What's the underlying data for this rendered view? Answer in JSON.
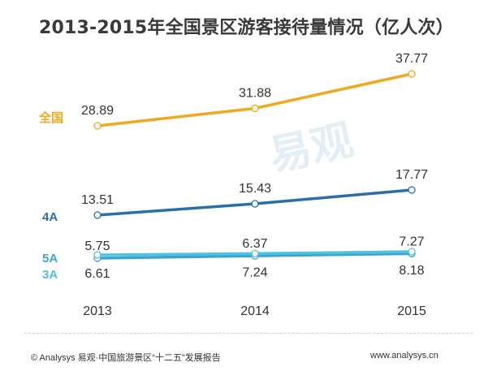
{
  "title": "2013-2015年全国景区游客接待量情况（亿人次）",
  "watermark": "易观",
  "footer": {
    "left": "© Analysys 易观·中国旅游景区“十二五”发展报告",
    "right": "www.analysys.cn"
  },
  "chart_data": {
    "type": "line",
    "title": "2013-2015年全国景区游客接待量情况（亿人次）",
    "x": [
      "2013",
      "2014",
      "2015"
    ],
    "series": [
      {
        "name": "全国",
        "values": [
          28.89,
          31.88,
          37.77
        ],
        "color": "#f0a81e"
      },
      {
        "name": "4A",
        "values": [
          13.51,
          15.43,
          17.77
        ],
        "color": "#2a6fa8"
      },
      {
        "name": "5A",
        "values": [
          5.75,
          6.37,
          7.27
        ],
        "color": "#3aa3d6"
      },
      {
        "name": "3A",
        "values": [
          6.61,
          7.24,
          8.18
        ],
        "color": "#4ec2df"
      }
    ],
    "grid": false,
    "legend": "left, beside each line"
  }
}
